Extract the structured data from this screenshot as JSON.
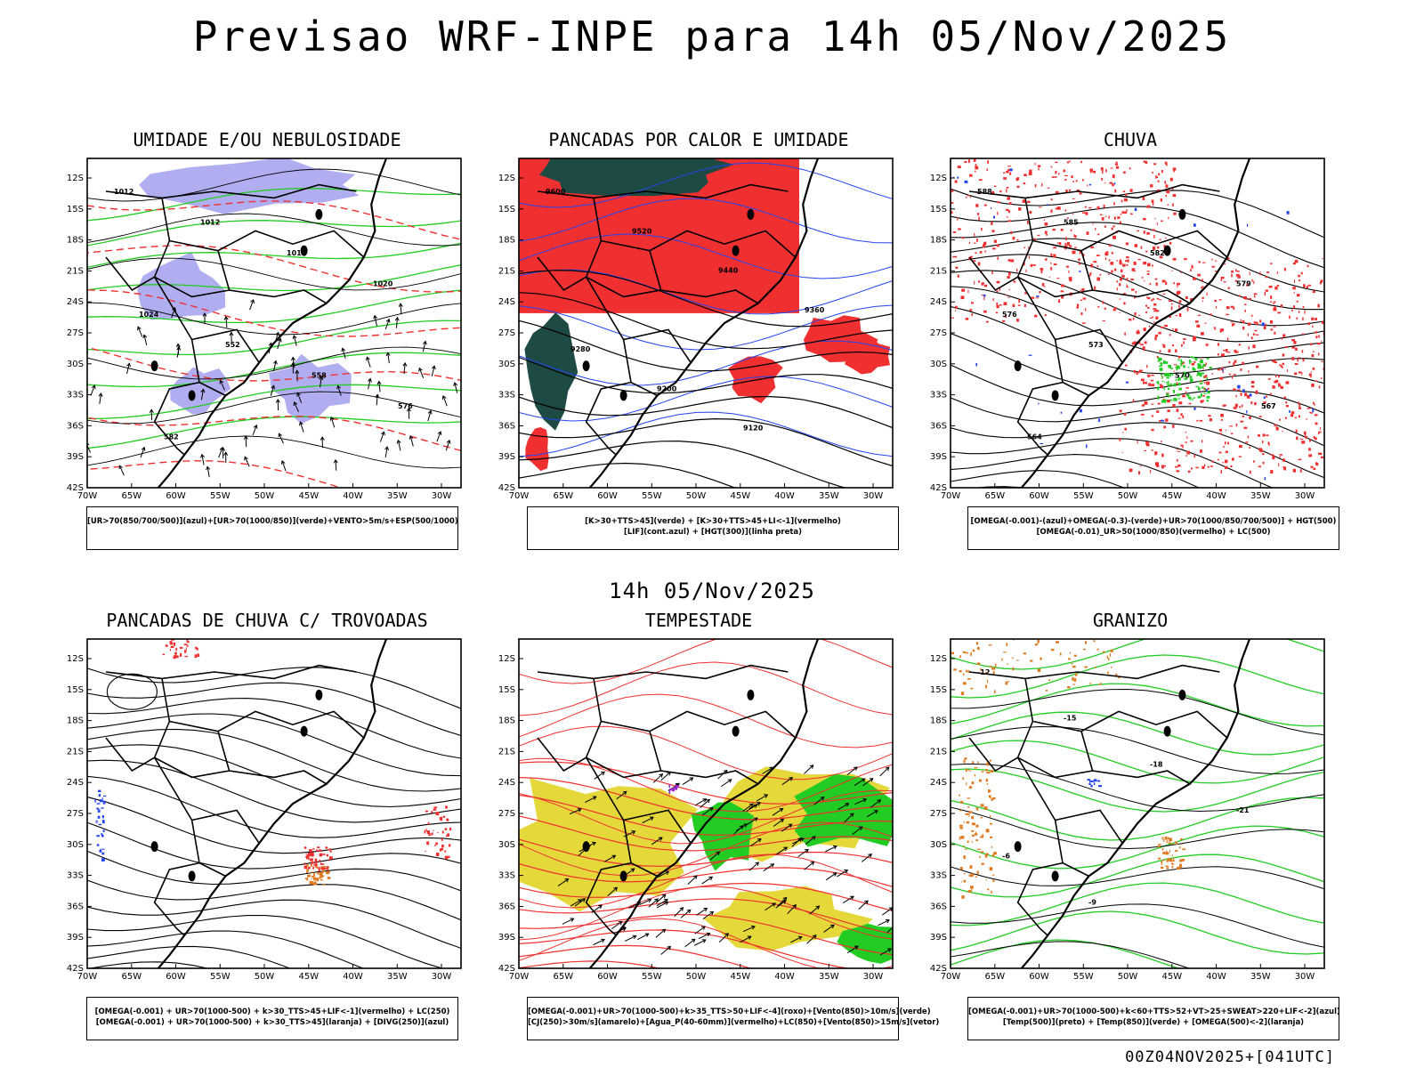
{
  "header": {
    "title": "Previsao WRF-INPE  para 14h 05/Nov/2025"
  },
  "middle_title": "14h 05/Nov/2025",
  "footer": {
    "stamp": "00Z04NOV2025+[041UTC]"
  },
  "axes": {
    "lat_labels": [
      "12S",
      "15S",
      "18S",
      "21S",
      "24S",
      "27S",
      "30S",
      "33S",
      "36S",
      "39S",
      "42S"
    ],
    "lon_labels": [
      "70W",
      "65W",
      "60W",
      "55W",
      "50W",
      "45W",
      "40W",
      "35W",
      "30W"
    ]
  },
  "panels": [
    {
      "title": "UMIDADE E/OU NEBULOSIDADE",
      "legend": [
        "[UR>70(850/700/500)](azul)+[UR>70(1000/850)](verde)+VENTO>5m/s+ESP(500/1000)"
      ],
      "contour_labels": [
        "1012",
        "1012",
        "1016",
        "1020",
        "1024",
        "552",
        "558",
        "576",
        "582"
      ]
    },
    {
      "title": "PANCADAS POR CALOR E UMIDADE",
      "legend": [
        "[K>30+TTS>45](verde)  +  [K>30+TTS>45+LI<-1](vermelho)",
        "[LIF](cont.azul)  +  [HGT(300)](linha preta)"
      ],
      "contour_labels": [
        "9600",
        "9520",
        "9440",
        "9360",
        "9280",
        "9200",
        "9120"
      ]
    },
    {
      "title": "CHUVA",
      "legend": [
        "[OMEGA(-0.001)-(azul)+OMEGA(-0.3)-(verde)+UR>70(1000/850/700/500)]  +  HGT(500)",
        "[OMEGA(-0.01)_UR>50(1000/850)(vermelho)  +  LC(500)"
      ],
      "contour_labels": [
        "588",
        "585",
        "582",
        "579",
        "576",
        "573",
        "570",
        "567",
        "564"
      ]
    },
    {
      "title": "PANCADAS DE CHUVA C/ TROVOADAS",
      "legend": [
        "[OMEGA(-0.001)  +  UR>70(1000-500)  +  k>30_TTS>45+LIF<-1](vermelho)  +  LC(250)",
        "[OMEGA(-0.001)  +  UR>70(1000-500)  +  k>30_TTS>45](laranja)  +  [DIVG(250)](azul)"
      ],
      "contour_labels": []
    },
    {
      "title": "TEMPESTADE",
      "legend": [
        "[OMEGA(-0.001)+UR>70(1000-500)+k>35_TTS>50+LIF<-4](roxo)+[Vento(850)>10m/s](verde)",
        "[CJ(250)>30m/s](amarelo)+[Agua_P(40-60mm)](vermelho)+LC(850)+[Vento(850)>15m/s](vetor)"
      ],
      "contour_labels": []
    },
    {
      "title": "GRANIZO",
      "legend": [
        "[OMEGA(-0.001)+UR>70(1000-500)+k<60+TTS>52+VT>25+SWEAT>220+LIF<-2](azul)",
        "[Temp(500)](preto)  +  [Temp(850)](verde)  +  [OMEGA(500)<-2](laranja)"
      ],
      "contour_labels": [
        "-12",
        "-15",
        "-18",
        "-21",
        "-6",
        "-9"
      ]
    }
  ],
  "colors": {
    "red": "#f03030",
    "green": "#22cc22",
    "blue": "#2244ee",
    "lavender": "#b0aef0",
    "yellow": "#e4d83a",
    "darkgreen": "#1e4a44",
    "orange": "#e07a20",
    "purple": "#9922cc"
  }
}
